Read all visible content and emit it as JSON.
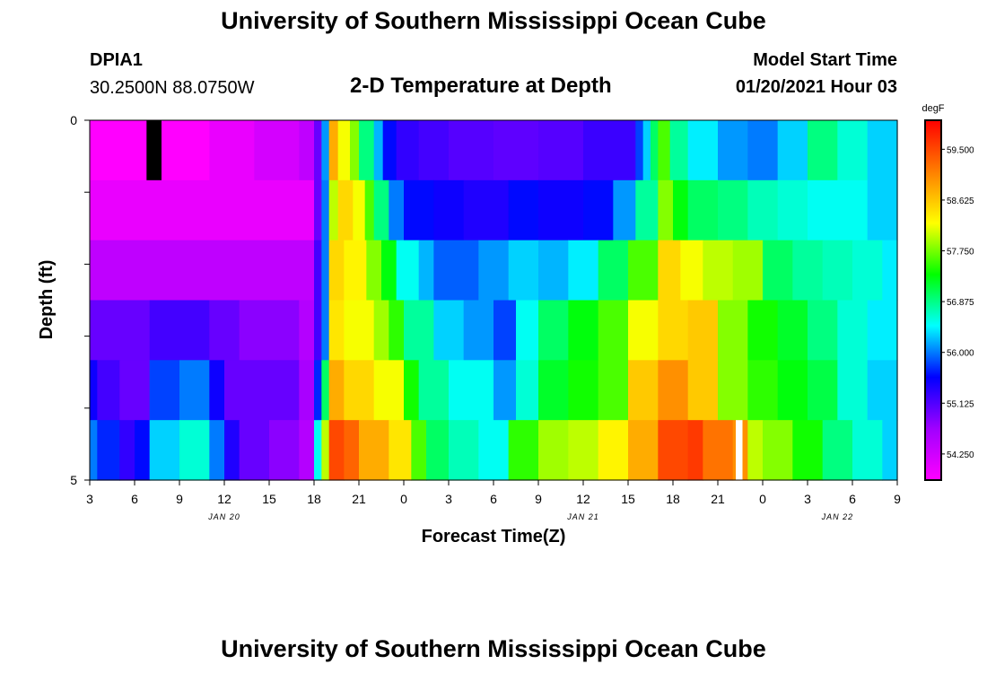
{
  "header": {
    "title_top": "University of Southern Mississippi Ocean Cube",
    "title_bottom": "University of Southern Mississippi Ocean Cube",
    "station_id": "DPIA1",
    "coordinates": "30.2500N 88.0750W",
    "model_label": "Model Start Time",
    "model_time": "01/20/2021 Hour 03"
  },
  "chart_data": {
    "type": "heatmap",
    "title": "2-D Temperature at Depth",
    "xlabel": "Forecast Time(Z)",
    "ylabel": "Depth (ft)",
    "unit": "degF",
    "x_ticks": [
      "3",
      "6",
      "9",
      "12",
      "15",
      "18",
      "21",
      "0",
      "3",
      "6",
      "9",
      "12",
      "15",
      "18",
      "21",
      "0",
      "3",
      "6",
      "9"
    ],
    "x_range_hours": [
      0,
      54
    ],
    "date_labels": [
      {
        "text": "JAN 20",
        "hour": 9
      },
      {
        "text": "JAN 21",
        "hour": 33
      },
      {
        "text": "JAN 22",
        "hour": 50
      }
    ],
    "y_ticks": [
      "0",
      "",
      "",
      "",
      "",
      "5"
    ],
    "y_range": [
      0,
      5
    ],
    "colorbar": {
      "ticks": [
        "59.500",
        "58.625",
        "57.750",
        "56.875",
        "56.000",
        "55.125",
        "54.250"
      ],
      "tick_values": [
        59.5,
        58.625,
        57.75,
        56.875,
        56.0,
        55.125,
        54.25
      ],
      "min": 53.8,
      "max": 60.0,
      "colors": [
        "#ff00ff",
        "#a000ff",
        "#0000ff",
        "#00ffff",
        "#00ff00",
        "#ffff00",
        "#ff7f00",
        "#ff0000"
      ]
    },
    "depth_layers": [
      {
        "depth": 0,
        "segments": [
          [
            0,
            3.8,
            53.8
          ],
          [
            3.8,
            4.8,
            "#000000"
          ],
          [
            4.8,
            8,
            53.8
          ],
          [
            8,
            11,
            54.0
          ],
          [
            11,
            14,
            54.2
          ],
          [
            14,
            15,
            54.4
          ],
          [
            15,
            15.5,
            55.0
          ],
          [
            15.5,
            16,
            56.1
          ],
          [
            16,
            16.6,
            58.8
          ],
          [
            16.6,
            17.4,
            58.2
          ],
          [
            17.4,
            18,
            57.8
          ],
          [
            18,
            19,
            56.9
          ],
          [
            19,
            19.6,
            56.2
          ],
          [
            19.6,
            20.5,
            55.6
          ],
          [
            20.5,
            22,
            55.3
          ],
          [
            22,
            24,
            55.2
          ],
          [
            24,
            27,
            55.1
          ],
          [
            27,
            30,
            55.05
          ],
          [
            30,
            33,
            55.1
          ],
          [
            33,
            36.5,
            55.25
          ],
          [
            36.5,
            37,
            55.8
          ],
          [
            37,
            37.5,
            56.3
          ],
          [
            37.5,
            38,
            57.0
          ],
          [
            38,
            38.8,
            57.6
          ],
          [
            38.8,
            40,
            56.8
          ],
          [
            40,
            42,
            56.4
          ],
          [
            42,
            44,
            56.1
          ],
          [
            44,
            46,
            56.0
          ],
          [
            46,
            48,
            56.3
          ],
          [
            48,
            50,
            56.9
          ],
          [
            50,
            52,
            56.6
          ],
          [
            52,
            54,
            56.3
          ]
        ]
      },
      {
        "depth": 1,
        "segments": [
          [
            0,
            15,
            54.0
          ],
          [
            15,
            15.5,
            55.0
          ],
          [
            15.5,
            16,
            56.0
          ],
          [
            16,
            16.6,
            58.0
          ],
          [
            16.6,
            17.6,
            58.5
          ],
          [
            17.6,
            18.4,
            58.2
          ],
          [
            18.4,
            19,
            57.6
          ],
          [
            19,
            20,
            56.9
          ],
          [
            20,
            21,
            56.0
          ],
          [
            21,
            23,
            55.6
          ],
          [
            23,
            25,
            55.5
          ],
          [
            25,
            28,
            55.4
          ],
          [
            28,
            30,
            55.6
          ],
          [
            30,
            33,
            55.5
          ],
          [
            33,
            35,
            55.6
          ],
          [
            35,
            36.5,
            56.1
          ],
          [
            36.5,
            38,
            56.8
          ],
          [
            38,
            39,
            57.8
          ],
          [
            39,
            40,
            57.3
          ],
          [
            40,
            42,
            57.0
          ],
          [
            42,
            44,
            56.9
          ],
          [
            44,
            46,
            56.7
          ],
          [
            46,
            48,
            56.6
          ],
          [
            48,
            50,
            56.5
          ],
          [
            50,
            52,
            56.5
          ],
          [
            52,
            54,
            56.3
          ]
        ]
      },
      {
        "depth": 2,
        "segments": [
          [
            0,
            15,
            54.4
          ],
          [
            15,
            15.5,
            55.2
          ],
          [
            15.5,
            16,
            56.0
          ],
          [
            16,
            17,
            58.5
          ],
          [
            17,
            18.5,
            58.3
          ],
          [
            18.5,
            19.5,
            57.8
          ],
          [
            19.5,
            20.5,
            57.3
          ],
          [
            20.5,
            22,
            56.5
          ],
          [
            22,
            23,
            56.2
          ],
          [
            23,
            26,
            55.9
          ],
          [
            26,
            28,
            56.1
          ],
          [
            28,
            30,
            56.3
          ],
          [
            30,
            32,
            56.2
          ],
          [
            32,
            34,
            56.4
          ],
          [
            34,
            36,
            57.0
          ],
          [
            36,
            38,
            57.6
          ],
          [
            38,
            39.5,
            58.5
          ],
          [
            39.5,
            41,
            58.2
          ],
          [
            41,
            43,
            58.0
          ],
          [
            43,
            45,
            57.9
          ],
          [
            45,
            47,
            57.0
          ],
          [
            47,
            49,
            56.8
          ],
          [
            49,
            51,
            56.7
          ],
          [
            51,
            53,
            56.6
          ],
          [
            53,
            54,
            56.4
          ]
        ]
      },
      {
        "depth": 3,
        "segments": [
          [
            0,
            4,
            55.0
          ],
          [
            4,
            8,
            55.2
          ],
          [
            8,
            10,
            55.0
          ],
          [
            10,
            14,
            54.8
          ],
          [
            14,
            15,
            54.5
          ],
          [
            15,
            15.5,
            55.2
          ],
          [
            15.5,
            16,
            56.0
          ],
          [
            16,
            17,
            58.4
          ],
          [
            17,
            19,
            58.2
          ],
          [
            19,
            20,
            57.9
          ],
          [
            20,
            21,
            57.5
          ],
          [
            21,
            23,
            56.8
          ],
          [
            23,
            25,
            56.3
          ],
          [
            25,
            27,
            56.1
          ],
          [
            27,
            28.5,
            55.8
          ],
          [
            28.5,
            30,
            56.5
          ],
          [
            30,
            32,
            57.0
          ],
          [
            32,
            34,
            57.3
          ],
          [
            34,
            36,
            57.6
          ],
          [
            36,
            38,
            58.2
          ],
          [
            38,
            40,
            58.5
          ],
          [
            40,
            42,
            58.6
          ],
          [
            42,
            44,
            57.8
          ],
          [
            44,
            46,
            57.4
          ],
          [
            46,
            48,
            57.2
          ],
          [
            48,
            50,
            56.9
          ],
          [
            50,
            52,
            56.6
          ],
          [
            52,
            54,
            56.4
          ]
        ]
      },
      {
        "depth": 4,
        "segments": [
          [
            0,
            0.5,
            55.5
          ],
          [
            0.5,
            2,
            55.2
          ],
          [
            2,
            4,
            55.0
          ],
          [
            4,
            6,
            55.8
          ],
          [
            6,
            8,
            56.0
          ],
          [
            8,
            9,
            55.5
          ],
          [
            9,
            14,
            55.0
          ],
          [
            14,
            15,
            54.6
          ],
          [
            15,
            15.5,
            55.7
          ],
          [
            15.5,
            16,
            57.0
          ],
          [
            16,
            17,
            58.8
          ],
          [
            17,
            19,
            58.5
          ],
          [
            19,
            21,
            58.2
          ],
          [
            21,
            22,
            57.4
          ],
          [
            22,
            24,
            56.8
          ],
          [
            24,
            27,
            56.5
          ],
          [
            27,
            28.5,
            56.1
          ],
          [
            28.5,
            30,
            56.6
          ],
          [
            30,
            32,
            57.2
          ],
          [
            32,
            34,
            57.4
          ],
          [
            34,
            36,
            57.6
          ],
          [
            36,
            38,
            58.6
          ],
          [
            38,
            40,
            59.0
          ],
          [
            40,
            42,
            58.6
          ],
          [
            42,
            44,
            57.8
          ],
          [
            44,
            46,
            57.5
          ],
          [
            46,
            48,
            57.3
          ],
          [
            48,
            50,
            57.1
          ],
          [
            50,
            52,
            56.6
          ],
          [
            52,
            54,
            56.3
          ]
        ]
      },
      {
        "depth": 5,
        "segments": [
          [
            0,
            0.5,
            56.0
          ],
          [
            0.5,
            2,
            55.7
          ],
          [
            2,
            3,
            55.3
          ],
          [
            3,
            4,
            55.6
          ],
          [
            4,
            6,
            56.3
          ],
          [
            6,
            8,
            56.6
          ],
          [
            8,
            9,
            56.0
          ],
          [
            9,
            10,
            55.4
          ],
          [
            10,
            12,
            55.0
          ],
          [
            12,
            14,
            54.8
          ],
          [
            14,
            15,
            54.5
          ],
          [
            15,
            15.5,
            56.5
          ],
          [
            15.5,
            16,
            58.0
          ],
          [
            16,
            17,
            59.5
          ],
          [
            17,
            18,
            59.3
          ],
          [
            18,
            20,
            58.8
          ],
          [
            20,
            21.5,
            58.4
          ],
          [
            21.5,
            22.5,
            57.6
          ],
          [
            22.5,
            24,
            57.0
          ],
          [
            24,
            26,
            56.7
          ],
          [
            26,
            28,
            56.5
          ],
          [
            28,
            30,
            57.5
          ],
          [
            30,
            32,
            57.9
          ],
          [
            32,
            34,
            58.0
          ],
          [
            34,
            36,
            58.3
          ],
          [
            36,
            38,
            58.8
          ],
          [
            38,
            40,
            59.5
          ],
          [
            40,
            41,
            59.6
          ],
          [
            41,
            43,
            59.2
          ],
          [
            43,
            44,
            59.0
          ],
          [
            44,
            45,
            58.0
          ],
          [
            45,
            47,
            57.8
          ],
          [
            47,
            49,
            57.4
          ],
          [
            49,
            51,
            56.9
          ],
          [
            51,
            53,
            56.6
          ],
          [
            53,
            54,
            56.3
          ]
        ]
      }
    ],
    "markers": [
      {
        "hour": 43.2,
        "depth": 5,
        "color": "#ffffff",
        "width_hours": 0.45
      }
    ]
  }
}
